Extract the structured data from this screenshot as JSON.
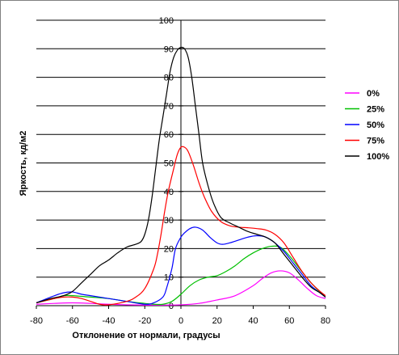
{
  "chart_data": {
    "type": "line",
    "xlabel": "Отклонение от нормали, градусы",
    "ylabel": "Яркость, кд/м2",
    "xlim": [
      -80,
      80
    ],
    "ylim": [
      0,
      100
    ],
    "x_ticks": [
      -80,
      -60,
      -40,
      -20,
      0,
      20,
      40,
      60,
      80
    ],
    "y_ticks": [
      0,
      10,
      20,
      30,
      40,
      50,
      60,
      70,
      80,
      90,
      100
    ],
    "grid": "horizontal",
    "legend_position": "right",
    "series": [
      {
        "name": "0%",
        "color": "#ff00ff",
        "points": [
          [
            -80,
            0.5
          ],
          [
            -70,
            0.8
          ],
          [
            -60,
            1.0
          ],
          [
            -50,
            0.8
          ],
          [
            -40,
            0.5
          ],
          [
            -30,
            0.3
          ],
          [
            -20,
            0.2
          ],
          [
            -10,
            0.2
          ],
          [
            0,
            0.3
          ],
          [
            10,
            0.8
          ],
          [
            20,
            2.0
          ],
          [
            30,
            3.5
          ],
          [
            40,
            7.0
          ],
          [
            45,
            9.5
          ],
          [
            50,
            11.5
          ],
          [
            55,
            12.2
          ],
          [
            60,
            11.5
          ],
          [
            65,
            9.0
          ],
          [
            70,
            6.0
          ],
          [
            75,
            3.5
          ],
          [
            80,
            2.5
          ]
        ]
      },
      {
        "name": "25%",
        "color": "#00c000",
        "points": [
          [
            -80,
            1.0
          ],
          [
            -70,
            2.5
          ],
          [
            -65,
            3.5
          ],
          [
            -60,
            3.5
          ],
          [
            -50,
            3.0
          ],
          [
            -40,
            2.5
          ],
          [
            -30,
            1.5
          ],
          [
            -20,
            0.8
          ],
          [
            -15,
            0.5
          ],
          [
            -10,
            0.5
          ],
          [
            -5,
            1.5
          ],
          [
            0,
            4.0
          ],
          [
            5,
            7.0
          ],
          [
            10,
            9.0
          ],
          [
            15,
            10.0
          ],
          [
            20,
            10.5
          ],
          [
            25,
            12.0
          ],
          [
            30,
            14.0
          ],
          [
            35,
            16.5
          ],
          [
            40,
            18.5
          ],
          [
            45,
            20.0
          ],
          [
            50,
            20.8
          ],
          [
            55,
            20.5
          ],
          [
            60,
            17.5
          ],
          [
            65,
            13.5
          ],
          [
            70,
            9.5
          ],
          [
            75,
            6.0
          ],
          [
            80,
            3.0
          ]
        ]
      },
      {
        "name": "50%",
        "color": "#0000ff",
        "points": [
          [
            -80,
            1.0
          ],
          [
            -70,
            3.5
          ],
          [
            -65,
            4.5
          ],
          [
            -60,
            4.8
          ],
          [
            -55,
            4.0
          ],
          [
            -50,
            3.5
          ],
          [
            -40,
            2.5
          ],
          [
            -30,
            1.5
          ],
          [
            -20,
            0.5
          ],
          [
            -15,
            1.0
          ],
          [
            -10,
            3.0
          ],
          [
            -8,
            6.0
          ],
          [
            -5,
            13.0
          ],
          [
            -3,
            20.0
          ],
          [
            0,
            24.0
          ],
          [
            2,
            25.5
          ],
          [
            5,
            27.0
          ],
          [
            8,
            27.5
          ],
          [
            12,
            26.5
          ],
          [
            16,
            24.0
          ],
          [
            20,
            22.0
          ],
          [
            23,
            21.5
          ],
          [
            27,
            22.0
          ],
          [
            32,
            23.0
          ],
          [
            37,
            24.0
          ],
          [
            42,
            24.5
          ],
          [
            47,
            24.0
          ],
          [
            52,
            22.0
          ],
          [
            57,
            19.0
          ],
          [
            62,
            15.0
          ],
          [
            67,
            11.0
          ],
          [
            72,
            7.0
          ],
          [
            77,
            4.5
          ],
          [
            80,
            3.0
          ]
        ]
      },
      {
        "name": "75%",
        "color": "#ff0000",
        "points": [
          [
            -80,
            1.0
          ],
          [
            -70,
            2.5
          ],
          [
            -65,
            3.0
          ],
          [
            -60,
            3.0
          ],
          [
            -55,
            2.5
          ],
          [
            -50,
            1.5
          ],
          [
            -45,
            0.5
          ],
          [
            -40,
            0.3
          ],
          [
            -30,
            1.5
          ],
          [
            -25,
            3.0
          ],
          [
            -20,
            6.0
          ],
          [
            -15,
            13.0
          ],
          [
            -13,
            18.0
          ],
          [
            -11,
            25.0
          ],
          [
            -9,
            33.0
          ],
          [
            -7,
            40.0
          ],
          [
            -4,
            48.0
          ],
          [
            -2,
            53.0
          ],
          [
            0,
            55.5
          ],
          [
            2,
            55.5
          ],
          [
            4,
            54.0
          ],
          [
            7,
            49.0
          ],
          [
            10,
            43.0
          ],
          [
            13,
            38.0
          ],
          [
            17,
            33.0
          ],
          [
            22,
            29.5
          ],
          [
            27,
            28.0
          ],
          [
            32,
            27.5
          ],
          [
            37,
            27.3
          ],
          [
            42,
            27.0
          ],
          [
            47,
            26.5
          ],
          [
            52,
            25.0
          ],
          [
            57,
            22.0
          ],
          [
            62,
            17.0
          ],
          [
            67,
            12.0
          ],
          [
            72,
            8.0
          ],
          [
            77,
            5.0
          ],
          [
            80,
            3.5
          ]
        ]
      },
      {
        "name": "100%",
        "color": "#000000",
        "points": [
          [
            -80,
            1.0
          ],
          [
            -72,
            2.5
          ],
          [
            -65,
            3.5
          ],
          [
            -60,
            5.0
          ],
          [
            -55,
            8.0
          ],
          [
            -50,
            11.0
          ],
          [
            -45,
            14.0
          ],
          [
            -40,
            16.0
          ],
          [
            -35,
            18.5
          ],
          [
            -30,
            20.5
          ],
          [
            -25,
            21.5
          ],
          [
            -22,
            22.5
          ],
          [
            -20,
            25.0
          ],
          [
            -18,
            30.0
          ],
          [
            -16,
            38.0
          ],
          [
            -14,
            48.0
          ],
          [
            -12,
            58.0
          ],
          [
            -10,
            66.0
          ],
          [
            -8,
            74.0
          ],
          [
            -6,
            82.0
          ],
          [
            -4,
            87.0
          ],
          [
            -2,
            89.5
          ],
          [
            0,
            90.5
          ],
          [
            2,
            90.0
          ],
          [
            4,
            87.0
          ],
          [
            6,
            80.0
          ],
          [
            8,
            70.0
          ],
          [
            10,
            60.0
          ],
          [
            12,
            50.0
          ],
          [
            15,
            42.0
          ],
          [
            18,
            36.0
          ],
          [
            22,
            31.0
          ],
          [
            27,
            29.0
          ],
          [
            32,
            27.5
          ],
          [
            37,
            26.0
          ],
          [
            42,
            25.0
          ],
          [
            47,
            24.0
          ],
          [
            52,
            22.0
          ],
          [
            57,
            18.0
          ],
          [
            62,
            14.0
          ],
          [
            67,
            10.0
          ],
          [
            72,
            6.5
          ],
          [
            77,
            4.5
          ],
          [
            80,
            3.0
          ]
        ]
      }
    ]
  }
}
